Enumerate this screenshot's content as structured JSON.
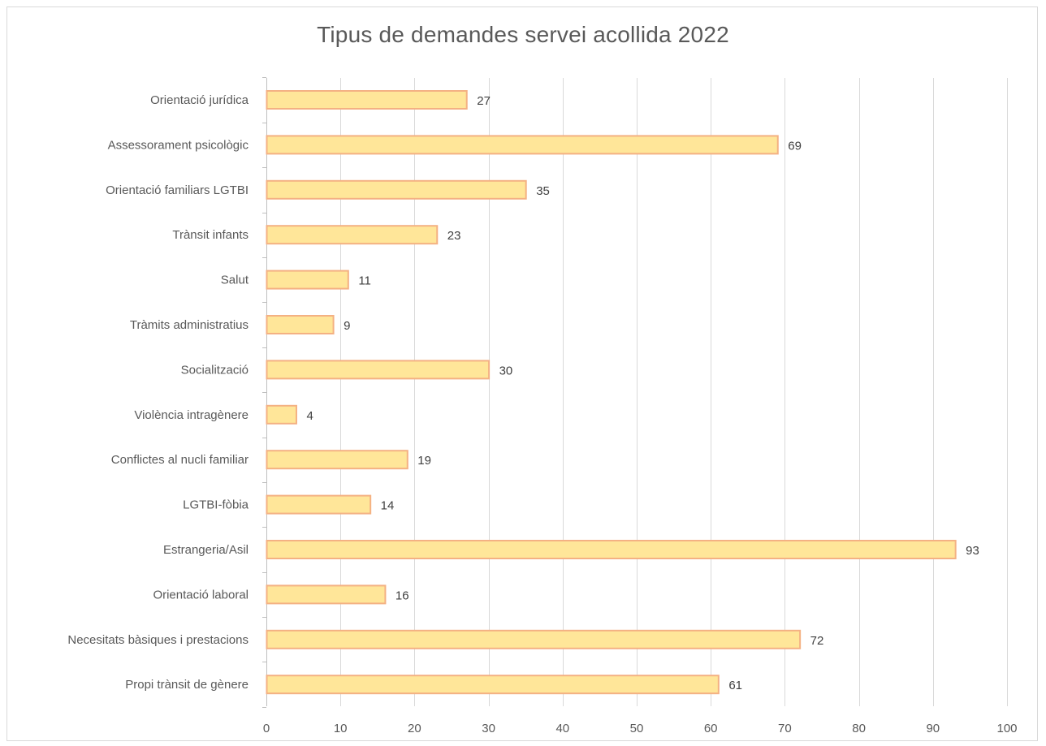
{
  "chart_data": {
    "type": "bar",
    "orientation": "horizontal",
    "title": "Tipus de demandes servei acollida 2022",
    "xlabel": "",
    "ylabel": "",
    "categories": [
      "Orientació jurídica",
      "Assessorament psicològic",
      "Orientació familiars LGTBI",
      "Trànsit infants",
      "Salut",
      "Tràmits administratius",
      "Socialització",
      "Violència intragènere",
      "Conflictes al nucli familiar",
      "LGTBI-fòbia",
      "Estrangeria/Asil",
      "Orientació laboral",
      "Necesitats bàsiques i prestacions",
      "Propi trànsit de gènere"
    ],
    "values": [
      27,
      69,
      35,
      23,
      11,
      9,
      30,
      4,
      19,
      14,
      93,
      16,
      72,
      61
    ],
    "xlim": [
      0,
      100
    ],
    "xticks": [
      0,
      10,
      20,
      30,
      40,
      50,
      60,
      70,
      80,
      90,
      100
    ],
    "grid": "vertical",
    "legend": "none",
    "data_labels": true,
    "colors": {
      "bar_fill": "#ffe699",
      "bar_stroke": "#f4b183",
      "grid": "#d9d9d9",
      "axis": "#bfbfbf",
      "text": "#595959"
    }
  }
}
